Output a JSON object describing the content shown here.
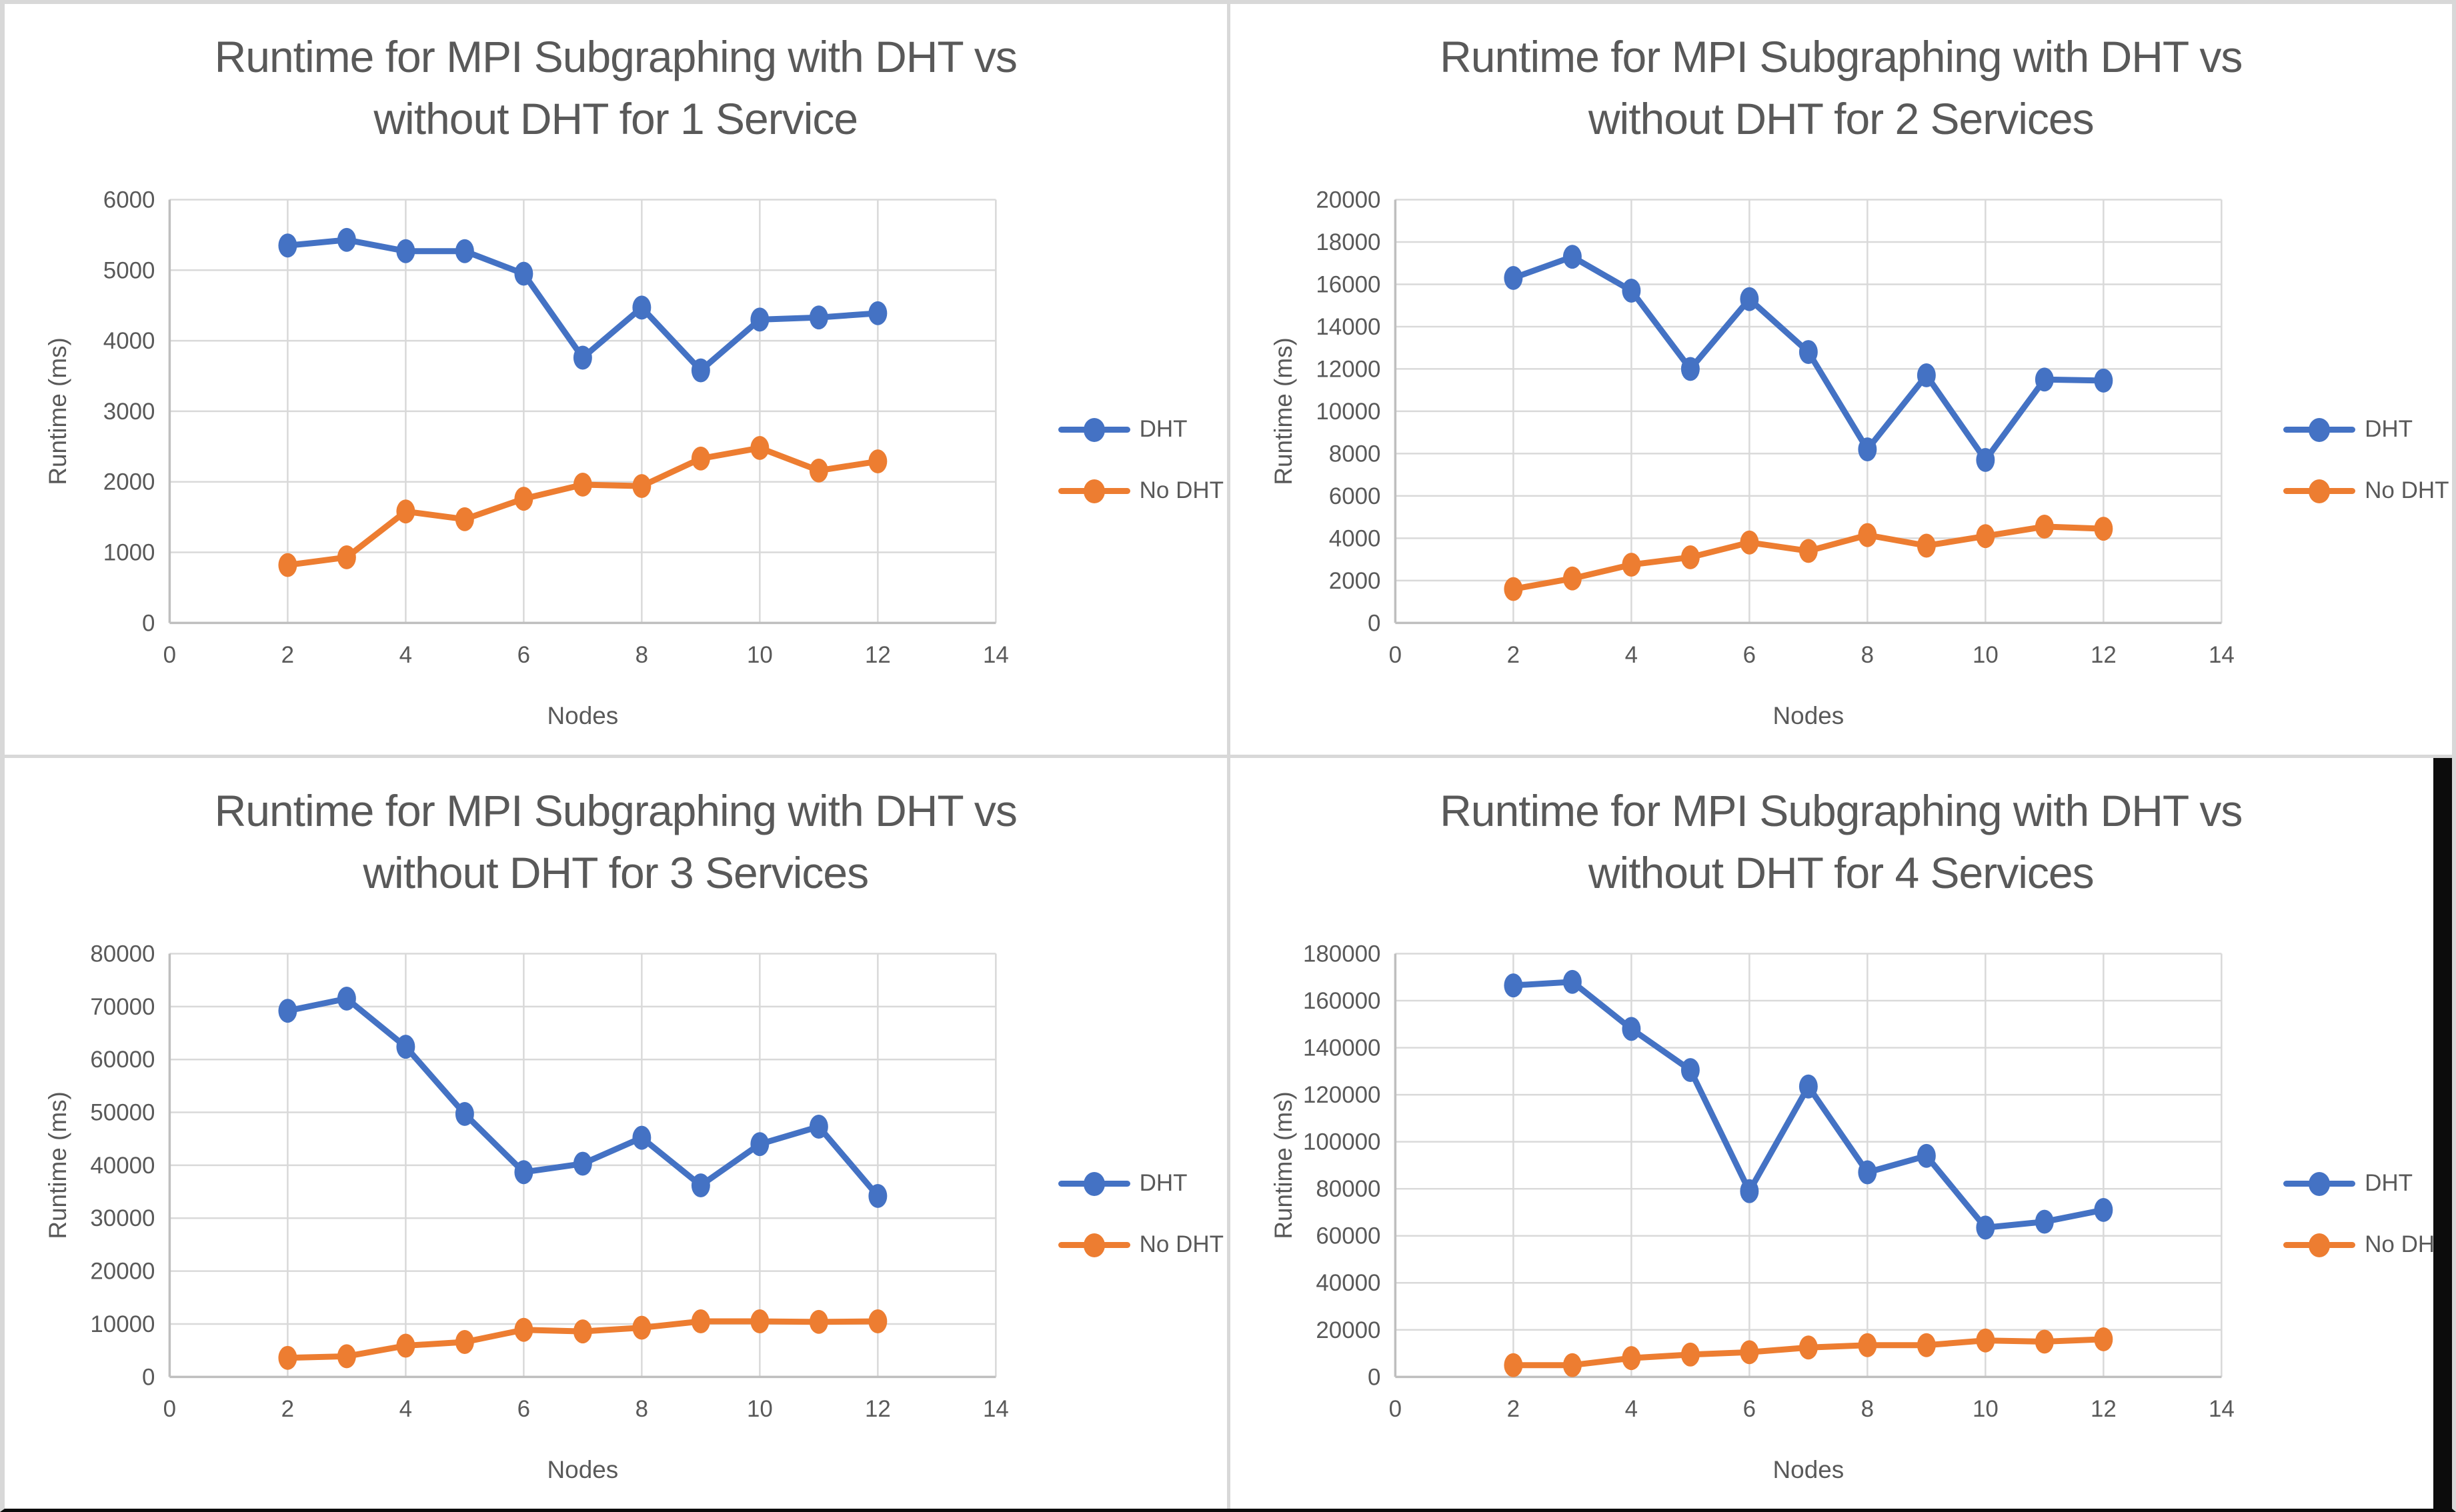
{
  "colors": {
    "dht": "#4472C4",
    "no_dht": "#ED7D31",
    "grid": "#D9D9D9",
    "axis": "#BFBFBF",
    "text": "#595959",
    "panel_bg": "#FFFFFF",
    "seam": "#D8D8D8"
  },
  "chart_data": [
    {
      "type": "line",
      "title_line1": "Runtime for MPI Subgraphing with DHT vs",
      "title_line2": "without DHT for 1 Service",
      "xlabel": "Nodes",
      "ylabel": "Runtime (ms)",
      "xlim": [
        0,
        14
      ],
      "xtick_step": 2,
      "ylim": [
        0,
        6000
      ],
      "ytick_step": 1000,
      "grid": "on",
      "legend_position": "right",
      "x": [
        2,
        3,
        4,
        5,
        6,
        7,
        8,
        9,
        10,
        11,
        12
      ],
      "series": [
        {
          "name": "DHT",
          "color_key": "dht",
          "values": [
            5350,
            5430,
            5270,
            5270,
            4950,
            3760,
            4470,
            3580,
            4300,
            4330,
            4390
          ]
        },
        {
          "name": "No DHT",
          "color_key": "no_dht",
          "values": [
            820,
            930,
            1580,
            1470,
            1760,
            1960,
            1940,
            2330,
            2480,
            2160,
            2290
          ]
        }
      ]
    },
    {
      "type": "line",
      "title_line1": "Runtime for MPI Subgraphing with DHT vs",
      "title_line2": "without DHT for 2 Services",
      "xlabel": "Nodes",
      "ylabel": "Runtime (ms)",
      "xlim": [
        0,
        14
      ],
      "xtick_step": 2,
      "ylim": [
        0,
        20000
      ],
      "ytick_step": 2000,
      "grid": "on",
      "legend_position": "right",
      "x": [
        2,
        3,
        4,
        5,
        6,
        7,
        8,
        9,
        10,
        11,
        12
      ],
      "series": [
        {
          "name": "DHT",
          "color_key": "dht",
          "values": [
            16300,
            17300,
            15700,
            12000,
            15300,
            12800,
            8200,
            11700,
            7700,
            11500,
            11450
          ]
        },
        {
          "name": "No DHT",
          "color_key": "no_dht",
          "values": [
            1600,
            2100,
            2750,
            3100,
            3800,
            3400,
            4150,
            3650,
            4100,
            4550,
            4450
          ]
        }
      ]
    },
    {
      "type": "line",
      "title_line1": "Runtime for MPI Subgraphing with DHT vs",
      "title_line2": "without DHT for 3 Services",
      "xlabel": "Nodes",
      "ylabel": "Runtime (ms)",
      "xlim": [
        0,
        14
      ],
      "xtick_step": 2,
      "ylim": [
        0,
        80000
      ],
      "ytick_step": 10000,
      "grid": "on",
      "legend_position": "right",
      "x": [
        2,
        3,
        4,
        5,
        6,
        7,
        8,
        9,
        10,
        11,
        12
      ],
      "series": [
        {
          "name": "DHT",
          "color_key": "dht",
          "values": [
            69200,
            71500,
            62400,
            49700,
            38700,
            40300,
            45200,
            36200,
            44000,
            47300,
            34200
          ]
        },
        {
          "name": "No DHT",
          "color_key": "no_dht",
          "values": [
            3600,
            3900,
            5900,
            6600,
            8900,
            8600,
            9300,
            10500,
            10500,
            10400,
            10500
          ]
        }
      ]
    },
    {
      "type": "line",
      "title_line1": "Runtime for MPI Subgraphing with DHT vs",
      "title_line2": "without DHT for 4 Services",
      "xlabel": "Nodes",
      "ylabel": "Runtime (ms)",
      "xlim": [
        0,
        14
      ],
      "xtick_step": 2,
      "ylim": [
        0,
        180000
      ],
      "ytick_step": 20000,
      "grid": "on",
      "legend_position": "right",
      "x": [
        2,
        3,
        4,
        5,
        6,
        7,
        8,
        9,
        10,
        11,
        12
      ],
      "series": [
        {
          "name": "DHT",
          "color_key": "dht",
          "values": [
            166500,
            168000,
            148000,
            130500,
            79000,
            123500,
            87000,
            94000,
            63500,
            66000,
            71000
          ]
        },
        {
          "name": "No DHT",
          "color_key": "no_dht",
          "values": [
            5000,
            5000,
            8000,
            9500,
            10500,
            12500,
            13500,
            13500,
            15500,
            15000,
            16000
          ]
        }
      ]
    }
  ]
}
